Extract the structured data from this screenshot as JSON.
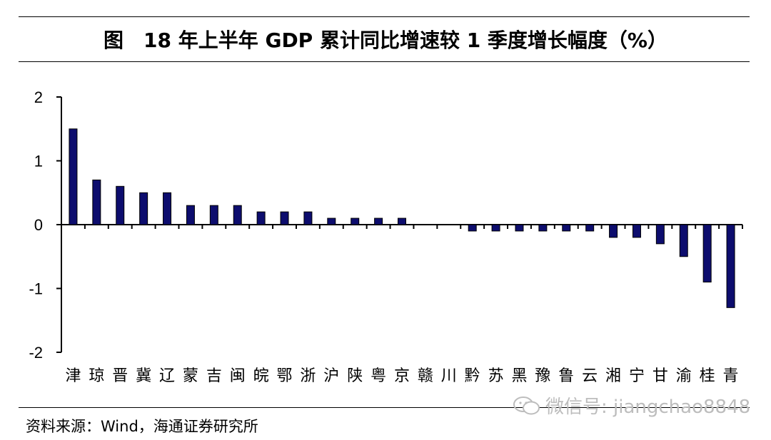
{
  "title": "图　18 年上半年 GDP 累计同比增速较 1 季度增长幅度（%）",
  "source": "资料来源：Wind，海通证券研究所",
  "watermark": "微信号: jiangchao8848",
  "colors": {
    "bar": "#0d0d6e",
    "axis": "#000000"
  },
  "chart_data": {
    "type": "bar",
    "categories": [
      "津",
      "琼",
      "晋",
      "冀",
      "辽",
      "蒙",
      "吉",
      "闽",
      "皖",
      "鄂",
      "浙",
      "沪",
      "陕",
      "粤",
      "京",
      "赣",
      "川",
      "黔",
      "苏",
      "黑",
      "豫",
      "鲁",
      "云",
      "湘",
      "宁",
      "甘",
      "渝",
      "桂",
      "青"
    ],
    "values": [
      1.5,
      0.7,
      0.6,
      0.5,
      0.5,
      0.3,
      0.3,
      0.3,
      0.2,
      0.2,
      0.2,
      0.1,
      0.1,
      0.1,
      0.1,
      0,
      0,
      -0.1,
      -0.1,
      -0.1,
      -0.1,
      -0.1,
      -0.1,
      -0.2,
      -0.2,
      -0.3,
      -0.5,
      -0.9,
      -1.3
    ],
    "ylim": [
      -2,
      2
    ],
    "yticks": [
      2,
      1,
      0,
      -1,
      -2
    ],
    "ytick_labels": [
      "2",
      "1",
      "0",
      "-1",
      "-2"
    ],
    "grid": false,
    "legend": "none"
  }
}
